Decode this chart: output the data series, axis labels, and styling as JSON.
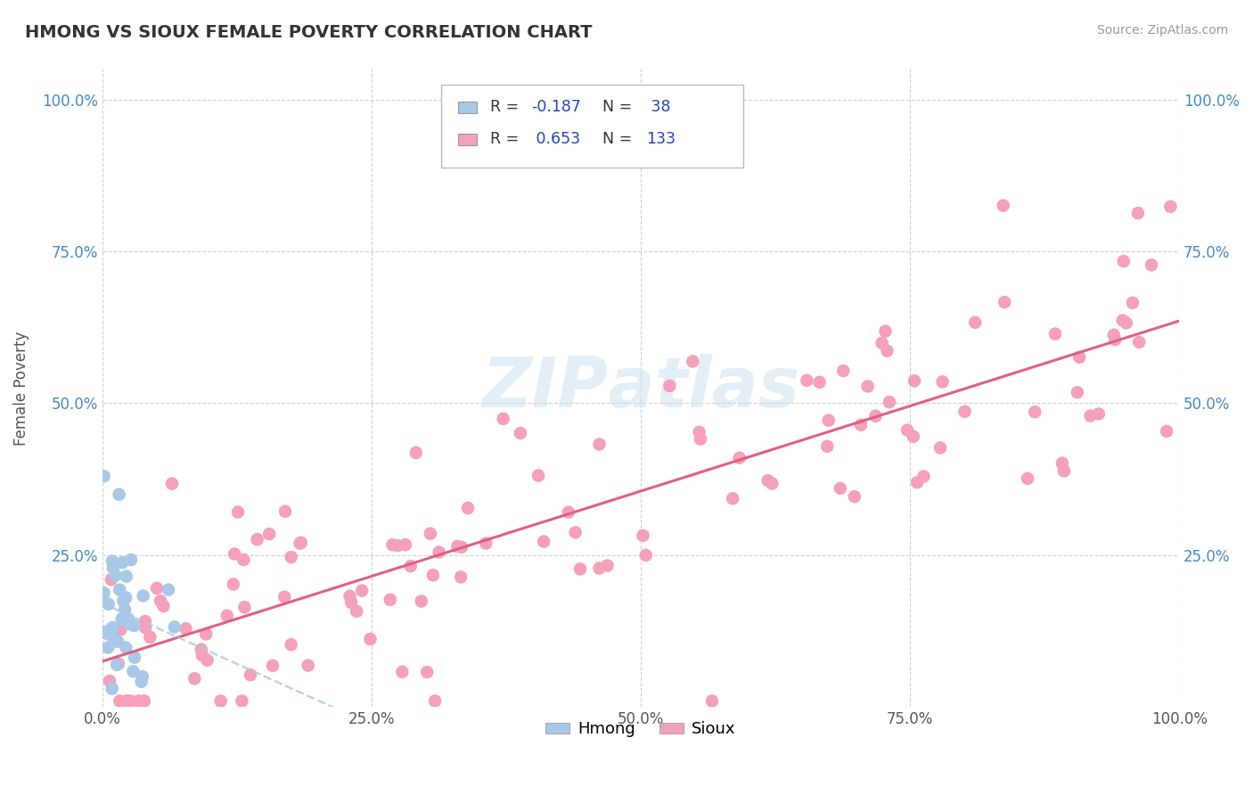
{
  "title": "HMONG VS SIOUX FEMALE POVERTY CORRELATION CHART",
  "source": "Source: ZipAtlas.com",
  "ylabel": "Female Poverty",
  "xlim": [
    0.0,
    1.0
  ],
  "ylim": [
    0.0,
    1.05
  ],
  "hmong_R": -0.187,
  "hmong_N": 38,
  "sioux_R": 0.653,
  "sioux_N": 133,
  "hmong_color": "#a8c8e8",
  "sioux_color": "#f4a0b8",
  "sioux_line_color": "#e06080",
  "hmong_line_color": "#a8c8e8",
  "tick_color_blue": "#4488cc",
  "grid_color": "#cccccc",
  "background_color": "#ffffff",
  "title_color": "#333333",
  "watermark_color": "#c8dff0",
  "legend_r_color": "#2244bb",
  "legend_text_color": "#333333"
}
